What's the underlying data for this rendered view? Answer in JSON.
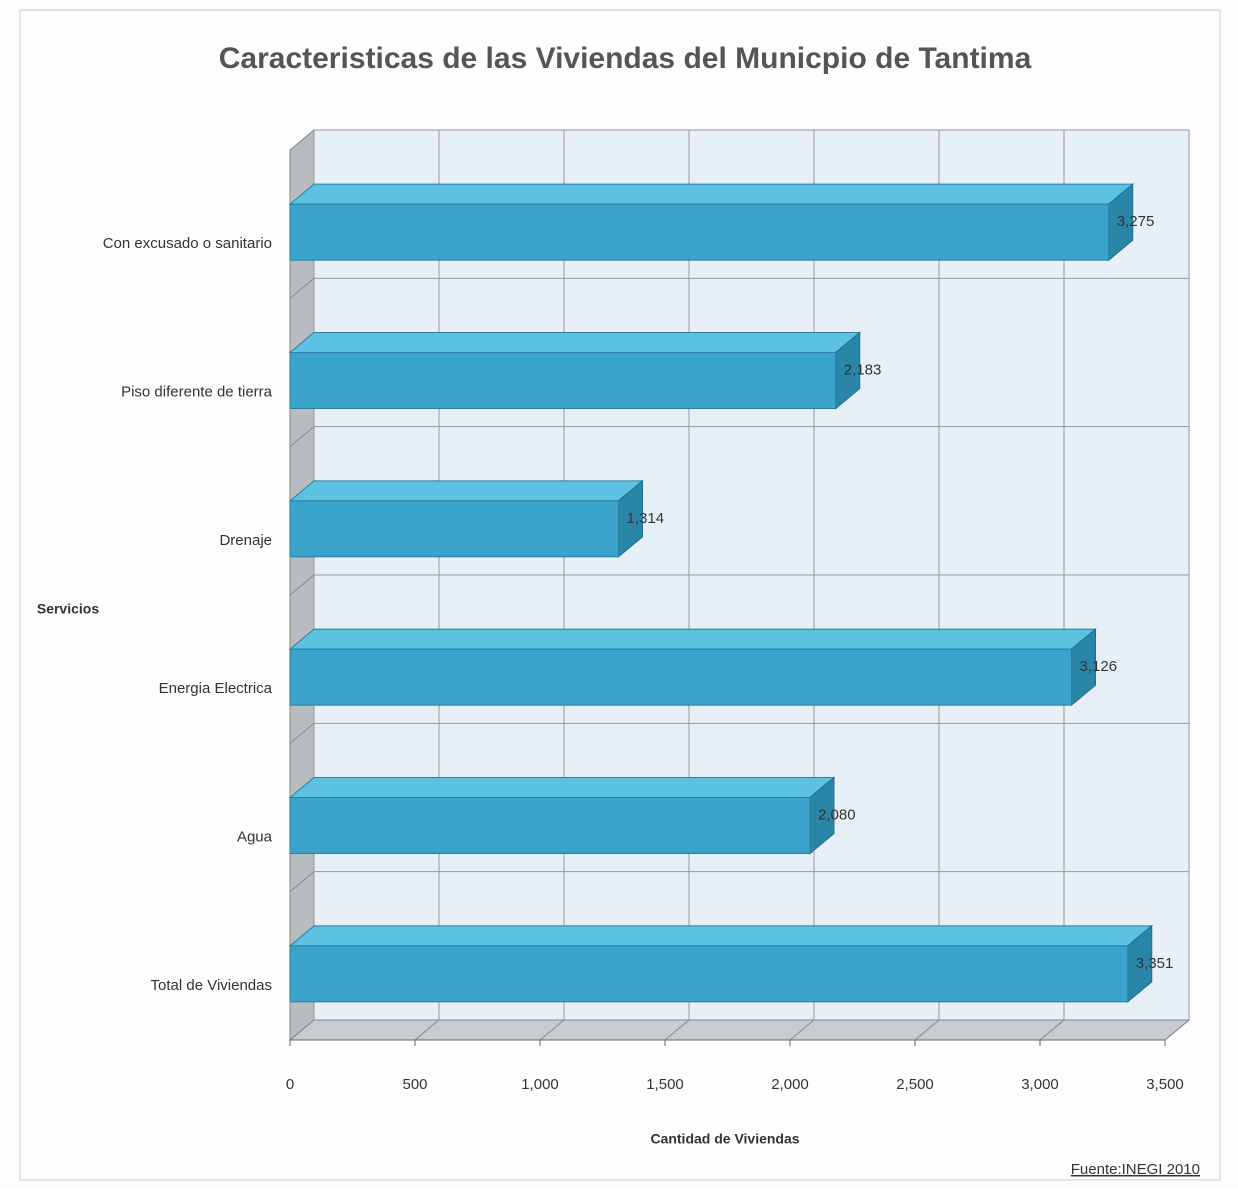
{
  "chart_data": {
    "type": "bar",
    "orientation": "horizontal",
    "title": "Caracteristicas de las Viviendas del Municpio de Tantima",
    "y_label": "Servicios",
    "x_label": "Cantidad de Viviendas",
    "source": "Fuente:INEGI 2010",
    "categories": [
      "Con excusado o sanitario",
      "Piso diferente de tierra",
      "Drenaje",
      "Energia Electrica",
      "Agua",
      "Total de Viviendas"
    ],
    "values": [
      3275,
      2183,
      1314,
      3126,
      2080,
      3351
    ],
    "value_labels": [
      "3,275",
      "2,183",
      "1,314",
      "3,126",
      "2,080",
      "3,351"
    ],
    "color": "#3aa3c9",
    "xlim": [
      0,
      3500
    ],
    "xticks": [
      0,
      500,
      {
        "value": 1000,
        "label": "1,000"
      },
      {
        "value": 1500,
        "label": "1,500"
      },
      {
        "value": 2000,
        "label": "2,000"
      },
      {
        "value": 2500,
        "label": "2,500"
      },
      {
        "value": 3000,
        "label": "3,000"
      },
      {
        "value": 3500,
        "label": "3,500"
      }
    ],
    "grid": true
  }
}
